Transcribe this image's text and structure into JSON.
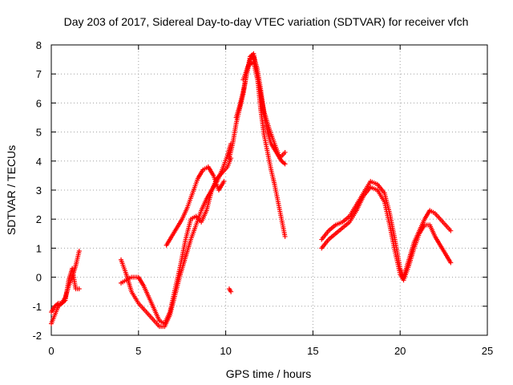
{
  "chart_data": {
    "type": "scatter",
    "title": "Day 203 of 2017, Sidereal Day-to-day VTEC variation (SDTVAR) for receiver vfch",
    "xlabel": "GPS time / hours",
    "ylabel": "SDTVAR / TECUs",
    "xlim": [
      0,
      25
    ],
    "ylim": [
      -2,
      8
    ],
    "xticks": [
      "0",
      "5",
      "10",
      "15",
      "20",
      "25"
    ],
    "yticks": [
      "-2",
      "-1",
      "0",
      "1",
      "2",
      "3",
      "4",
      "5",
      "6",
      "7",
      "8"
    ],
    "grid": true,
    "marker": "+",
    "color": "#ff0000",
    "series": [
      {
        "name": "seg-0-1.6-a",
        "x": [
          0.0,
          0.2,
          0.4,
          0.6,
          0.8,
          1.0,
          1.2,
          1.4,
          1.6
        ],
        "y": [
          -1.6,
          -1.3,
          -1.0,
          -0.9,
          -0.7,
          -0.3,
          0.0,
          0.4,
          0.9
        ]
      },
      {
        "name": "seg-0-1.6-b",
        "x": [
          0.0,
          0.2,
          0.4,
          0.6,
          0.8,
          1.0,
          1.2,
          1.4,
          1.6
        ],
        "y": [
          -1.2,
          -1.0,
          -0.9,
          -0.9,
          -0.8,
          -0.1,
          0.3,
          -0.4,
          -0.4
        ]
      },
      {
        "name": "seg-4-10.5-a",
        "x": [
          4.0,
          4.3,
          4.6,
          5.0,
          5.3,
          5.6,
          5.9,
          6.2,
          6.5,
          6.8,
          7.1,
          7.4,
          7.7,
          8.0,
          8.3,
          8.6,
          8.9,
          9.2,
          9.5,
          9.8,
          10.1,
          10.3
        ],
        "y": [
          0.6,
          0.1,
          -0.5,
          -0.9,
          -1.1,
          -1.3,
          -1.5,
          -1.7,
          -1.7,
          -1.3,
          -0.6,
          0.1,
          0.7,
          1.3,
          1.8,
          2.3,
          2.7,
          3.0,
          3.3,
          3.7,
          4.2,
          4.6
        ]
      },
      {
        "name": "seg-4-10.5-b",
        "x": [
          4.0,
          4.3,
          4.6,
          5.0,
          5.3,
          5.6,
          5.9,
          6.2,
          6.5,
          6.8,
          7.1,
          7.4,
          7.7,
          8.0,
          8.3,
          8.6,
          8.9,
          9.2,
          9.5,
          9.8,
          10.1,
          10.3
        ],
        "y": [
          -0.2,
          -0.1,
          0.0,
          0.0,
          -0.3,
          -0.7,
          -1.1,
          -1.5,
          -1.6,
          -1.2,
          -0.4,
          0.4,
          1.3,
          2.0,
          2.1,
          1.9,
          2.3,
          3.0,
          3.4,
          3.6,
          3.8,
          4.1
        ]
      },
      {
        "name": "seg-6.5-9.5-c",
        "x": [
          6.6,
          6.9,
          7.2,
          7.5,
          7.8,
          8.1,
          8.4,
          8.7,
          9.0,
          9.3,
          9.6,
          9.9
        ],
        "y": [
          1.1,
          1.4,
          1.7,
          2.0,
          2.4,
          2.9,
          3.4,
          3.7,
          3.8,
          3.5,
          3.0,
          3.3
        ]
      },
      {
        "name": "seg-10.2-13.5-a",
        "x": [
          10.2,
          10.4,
          10.6,
          10.8,
          11.0,
          11.2,
          11.4,
          11.6,
          11.8,
          12.0,
          12.2,
          12.4,
          12.6,
          12.8,
          13.0,
          13.2,
          13.4
        ],
        "y": [
          4.1,
          4.6,
          5.3,
          5.8,
          6.3,
          7.0,
          7.6,
          7.7,
          7.0,
          5.8,
          4.9,
          4.3,
          3.7,
          3.2,
          2.6,
          2.0,
          1.4
        ]
      },
      {
        "name": "seg-10.2-13.5-b",
        "x": [
          10.6,
          10.8,
          11.0,
          11.2,
          11.4,
          11.6,
          11.8,
          12.0,
          12.2,
          12.4,
          12.6,
          12.8,
          13.0,
          13.2,
          13.4
        ],
        "y": [
          5.5,
          5.9,
          6.4,
          7.0,
          7.5,
          7.6,
          7.2,
          6.5,
          5.6,
          5.0,
          4.6,
          4.4,
          4.2,
          4.0,
          3.9
        ]
      },
      {
        "name": "seg-10.2-13.5-c",
        "x": [
          11.0,
          11.3,
          11.6,
          11.9,
          12.2,
          12.5,
          12.8,
          13.1,
          13.4
        ],
        "y": [
          6.8,
          7.3,
          7.4,
          6.6,
          5.7,
          5.1,
          4.6,
          4.1,
          4.3
        ]
      },
      {
        "name": "isolated-10.2",
        "x": [
          10.2,
          10.3
        ],
        "y": [
          -0.4,
          -0.5
        ]
      },
      {
        "name": "seg-15.5-23-a",
        "x": [
          15.5,
          15.9,
          16.3,
          16.7,
          17.1,
          17.5,
          17.9,
          18.3,
          18.7,
          19.1,
          19.4,
          19.7,
          20.0,
          20.2,
          20.5,
          20.8,
          21.1,
          21.4,
          21.7,
          22.0,
          22.3,
          22.6,
          22.9
        ],
        "y": [
          1.3,
          1.6,
          1.8,
          1.9,
          2.1,
          2.5,
          2.9,
          3.3,
          3.2,
          2.9,
          2.2,
          1.3,
          0.3,
          0.0,
          0.6,
          1.2,
          1.6,
          2.0,
          2.3,
          2.2,
          2.0,
          1.8,
          1.6
        ]
      },
      {
        "name": "seg-15.5-23-b",
        "x": [
          15.5,
          15.9,
          16.3,
          16.7,
          17.1,
          17.5,
          17.9,
          18.3,
          18.7,
          19.1,
          19.4,
          19.7,
          20.0,
          20.2,
          20.5,
          20.8,
          21.1,
          21.4,
          21.7,
          22.0,
          22.3,
          22.6,
          22.9
        ],
        "y": [
          1.0,
          1.3,
          1.5,
          1.7,
          1.9,
          2.3,
          2.8,
          3.1,
          3.0,
          2.6,
          1.8,
          0.9,
          0.1,
          -0.1,
          0.4,
          1.0,
          1.5,
          1.8,
          1.8,
          1.4,
          1.1,
          0.8,
          0.5
        ]
      }
    ]
  }
}
